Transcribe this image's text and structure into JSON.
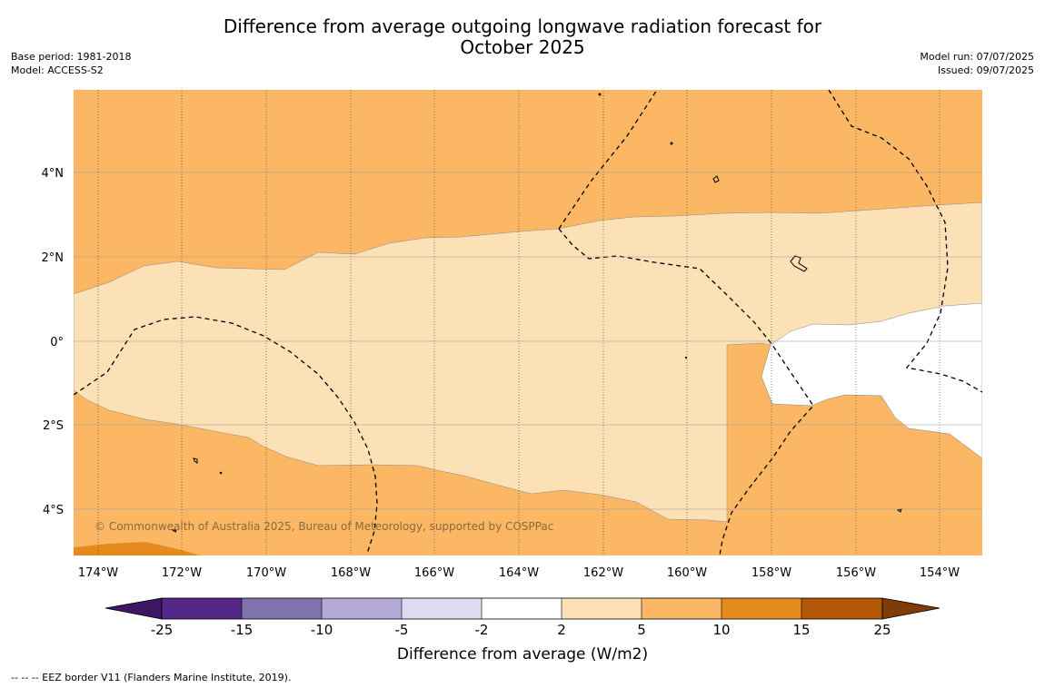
{
  "title": {
    "line1": "Difference from average outgoing longwave radiation forecast for",
    "line2": "October 2025"
  },
  "meta_left": {
    "base_period": "Base period: 1981-2018",
    "model": "Model: ACCESS-S2"
  },
  "meta_right": {
    "model_run": "Model run: 07/07/2025",
    "issued": "Issued: 09/07/2025"
  },
  "map": {
    "longitude_ticks": [
      "174°W",
      "172°W",
      "170°W",
      "168°W",
      "166°W",
      "164°W",
      "162°W",
      "160°W",
      "158°W",
      "156°W",
      "154°W"
    ],
    "latitude_ticks": [
      "4°N",
      "2°N",
      "0°",
      "2°S",
      "4°S"
    ],
    "copyright": "© Commonwealth of Australia 2025, Bureau of Meteorology, supported by COSPPac",
    "colors": {
      "2_to_5": "#fce0b6",
      "5_to_10": "#fbb764",
      "10_to_15": "#e58b1d",
      "neutral": "#ffffff"
    }
  },
  "colorbar": {
    "labels": [
      "-25",
      "-15",
      "-10",
      "-5",
      "-2",
      "2",
      "5",
      "10",
      "15",
      "25"
    ],
    "colors": [
      "#3d1762",
      "#542789",
      "#7f72ad",
      "#b3a9d4",
      "#dcdbef",
      "#ffffff",
      "#fce0b6",
      "#fbb764",
      "#e58b1d",
      "#b35809",
      "#7f3c08"
    ],
    "title": "Difference from average (W/m2)"
  },
  "footer": "--  --  -- EEZ border V11 (Flanders Marine Institute, 2019)."
}
